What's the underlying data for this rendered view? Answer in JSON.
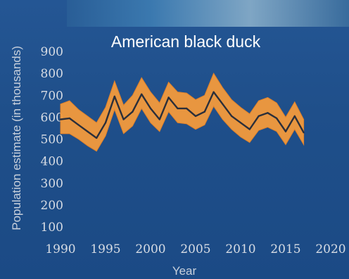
{
  "chart_data": {
    "type": "line",
    "title": "American black duck",
    "xlabel": "Year",
    "ylabel": "Population estimate (in thousands)",
    "xlim": [
      1990,
      2020
    ],
    "ylim": [
      100,
      900
    ],
    "x_ticks": [
      "1990",
      "1995",
      "2000",
      "2005",
      "2010",
      "2015",
      "2020"
    ],
    "y_ticks": [
      "900",
      "800",
      "700",
      "600",
      "500",
      "400",
      "300",
      "200",
      "100"
    ],
    "grid": false,
    "series": [
      {
        "x": [
          1990,
          1991,
          1992,
          1993,
          1994,
          1995,
          1996,
          1997,
          1998,
          1999,
          2000,
          2001,
          2002,
          2003,
          2004,
          2005,
          2006,
          2007,
          2008,
          2009,
          2010,
          2011,
          2012,
          2013,
          2014,
          2015,
          2016,
          2017
        ],
        "y": [
          590,
          595,
          565,
          535,
          505,
          575,
          695,
          590,
          625,
          705,
          640,
          590,
          690,
          640,
          640,
          605,
          625,
          715,
          660,
          605,
          575,
          545,
          605,
          620,
          595,
          535,
          605,
          530
        ],
        "lower": [
          525,
          525,
          500,
          470,
          445,
          515,
          635,
          525,
          560,
          640,
          575,
          535,
          625,
          575,
          570,
          545,
          565,
          650,
          590,
          545,
          510,
          485,
          540,
          555,
          535,
          475,
          545,
          475
        ],
        "upper": [
          660,
          675,
          635,
          605,
          575,
          645,
          765,
          655,
          700,
          780,
          715,
          665,
          760,
          715,
          710,
          680,
          700,
          800,
          735,
          680,
          645,
          615,
          675,
          690,
          665,
          600,
          670,
          590
        ],
        "line_color": "#2b2f3a",
        "band_color": "#f39a3c"
      }
    ]
  }
}
